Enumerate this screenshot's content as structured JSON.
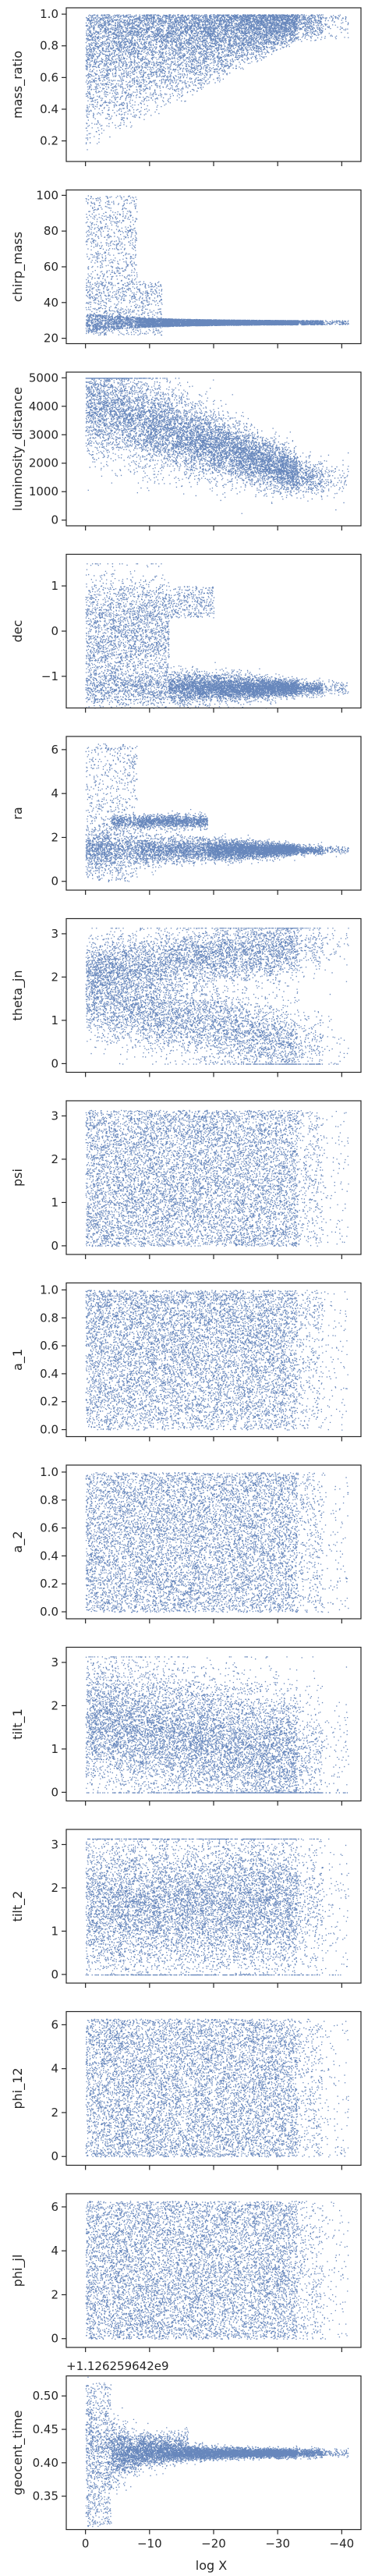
{
  "figure": {
    "xlabel": "log X",
    "offset_text": "+1.126259642e9"
  },
  "chart_data": [
    {
      "type": "scatter",
      "ylabel": "mass_ratio",
      "xlim": [
        3,
        -43
      ],
      "ylim": [
        0.07,
        1.04
      ],
      "yticks": [
        {
          "v": 0.2,
          "label": "0.2"
        },
        {
          "v": 0.4,
          "label": "0.4"
        },
        {
          "v": 0.6,
          "label": "0.6"
        },
        {
          "v": 0.8,
          "label": "0.8"
        },
        {
          "v": 1.0,
          "label": "1.0"
        }
      ]
    },
    {
      "type": "scatter",
      "ylabel": "chirp_mass",
      "xlim": [
        3,
        -43
      ],
      "ylim": [
        17,
        103
      ],
      "yticks": [
        {
          "v": 20,
          "label": "20"
        },
        {
          "v": 40,
          "label": "40"
        },
        {
          "v": 60,
          "label": "60"
        },
        {
          "v": 80,
          "label": "80"
        },
        {
          "v": 100,
          "label": "100"
        }
      ]
    },
    {
      "type": "scatter",
      "ylabel": "luminosity_distance",
      "xlim": [
        3,
        -43
      ],
      "ylim": [
        -200,
        5200
      ],
      "yticks": [
        {
          "v": 0,
          "label": "0"
        },
        {
          "v": 1000,
          "label": "1000"
        },
        {
          "v": 2000,
          "label": "2000"
        },
        {
          "v": 3000,
          "label": "3000"
        },
        {
          "v": 4000,
          "label": "4000"
        },
        {
          "v": 5000,
          "label": "5000"
        }
      ]
    },
    {
      "type": "scatter",
      "ylabel": "dec",
      "xlim": [
        3,
        -43
      ],
      "ylim": [
        -1.7,
        1.7
      ],
      "yticks": [
        {
          "v": -1,
          "label": "−1"
        },
        {
          "v": 0,
          "label": "0"
        },
        {
          "v": 1,
          "label": "1"
        }
      ]
    },
    {
      "type": "scatter",
      "ylabel": "ra",
      "xlim": [
        3,
        -43
      ],
      "ylim": [
        -0.4,
        6.6
      ],
      "yticks": [
        {
          "v": 0,
          "label": "0"
        },
        {
          "v": 2,
          "label": "2"
        },
        {
          "v": 4,
          "label": "4"
        },
        {
          "v": 6,
          "label": "6"
        }
      ]
    },
    {
      "type": "scatter",
      "ylabel": "theta_jn",
      "xlim": [
        3,
        -43
      ],
      "ylim": [
        -0.2,
        3.35
      ],
      "yticks": [
        {
          "v": 0,
          "label": "0"
        },
        {
          "v": 1,
          "label": "1"
        },
        {
          "v": 2,
          "label": "2"
        },
        {
          "v": 3,
          "label": "3"
        }
      ]
    },
    {
      "type": "scatter",
      "ylabel": "psi",
      "xlim": [
        3,
        -43
      ],
      "ylim": [
        -0.2,
        3.35
      ],
      "yticks": [
        {
          "v": 0,
          "label": "0"
        },
        {
          "v": 1,
          "label": "1"
        },
        {
          "v": 2,
          "label": "2"
        },
        {
          "v": 3,
          "label": "3"
        }
      ]
    },
    {
      "type": "scatter",
      "ylabel": "a_1",
      "xlim": [
        3,
        -43
      ],
      "ylim": [
        -0.05,
        1.05
      ],
      "yticks": [
        {
          "v": 0.0,
          "label": "0.0"
        },
        {
          "v": 0.2,
          "label": "0.2"
        },
        {
          "v": 0.4,
          "label": "0.4"
        },
        {
          "v": 0.6,
          "label": "0.6"
        },
        {
          "v": 0.8,
          "label": "0.8"
        },
        {
          "v": 1.0,
          "label": "1.0"
        }
      ]
    },
    {
      "type": "scatter",
      "ylabel": "a_2",
      "xlim": [
        3,
        -43
      ],
      "ylim": [
        -0.05,
        1.05
      ],
      "yticks": [
        {
          "v": 0.0,
          "label": "0.0"
        },
        {
          "v": 0.2,
          "label": "0.2"
        },
        {
          "v": 0.4,
          "label": "0.4"
        },
        {
          "v": 0.6,
          "label": "0.6"
        },
        {
          "v": 0.8,
          "label": "0.8"
        },
        {
          "v": 1.0,
          "label": "1.0"
        }
      ]
    },
    {
      "type": "scatter",
      "ylabel": "tilt_1",
      "xlim": [
        3,
        -43
      ],
      "ylim": [
        -0.2,
        3.35
      ],
      "yticks": [
        {
          "v": 0,
          "label": "0"
        },
        {
          "v": 1,
          "label": "1"
        },
        {
          "v": 2,
          "label": "2"
        },
        {
          "v": 3,
          "label": "3"
        }
      ]
    },
    {
      "type": "scatter",
      "ylabel": "tilt_2",
      "xlim": [
        3,
        -43
      ],
      "ylim": [
        -0.2,
        3.35
      ],
      "yticks": [
        {
          "v": 0,
          "label": "0"
        },
        {
          "v": 1,
          "label": "1"
        },
        {
          "v": 2,
          "label": "2"
        },
        {
          "v": 3,
          "label": "3"
        }
      ]
    },
    {
      "type": "scatter",
      "ylabel": "phi_12",
      "xlim": [
        3,
        -43
      ],
      "ylim": [
        -0.4,
        6.6
      ],
      "yticks": [
        {
          "v": 0,
          "label": "0"
        },
        {
          "v": 2,
          "label": "2"
        },
        {
          "v": 4,
          "label": "4"
        },
        {
          "v": 6,
          "label": "6"
        }
      ]
    },
    {
      "type": "scatter",
      "ylabel": "phi_jl",
      "xlim": [
        3,
        -43
      ],
      "ylim": [
        -0.4,
        6.6
      ],
      "yticks": [
        {
          "v": 0,
          "label": "0"
        },
        {
          "v": 2,
          "label": "2"
        },
        {
          "v": 4,
          "label": "4"
        },
        {
          "v": 6,
          "label": "6"
        }
      ]
    },
    {
      "type": "scatter",
      "ylabel": "geocent_time",
      "xlim": [
        3,
        -43
      ],
      "ylim": [
        0.3,
        0.53
      ],
      "yticks": [
        {
          "v": 0.35,
          "label": "0.35"
        },
        {
          "v": 0.4,
          "label": "0.40"
        },
        {
          "v": 0.45,
          "label": "0.45"
        },
        {
          "v": 0.5,
          "label": "0.50"
        }
      ],
      "xticks": [
        {
          "v": 0,
          "label": "0"
        },
        {
          "v": -10,
          "label": "−10"
        },
        {
          "v": -20,
          "label": "−20"
        },
        {
          "v": -30,
          "label": "−30"
        },
        {
          "v": -40,
          "label": "−40"
        }
      ]
    }
  ]
}
